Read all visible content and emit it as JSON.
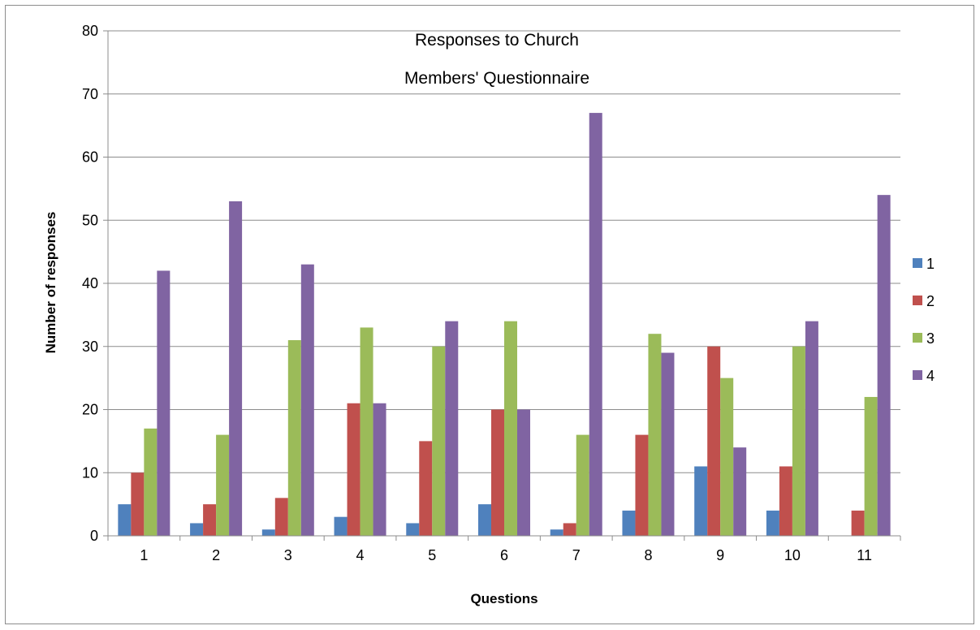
{
  "chart_data": {
    "type": "bar",
    "title_lines": [
      "Responses to Church",
      "Members' Questionnaire"
    ],
    "xlabel": "Questions",
    "ylabel": "Number of responses",
    "categories": [
      "1",
      "2",
      "3",
      "4",
      "5",
      "6",
      "7",
      "8",
      "9",
      "10",
      "11"
    ],
    "ylim": [
      0,
      80
    ],
    "yticks": [
      0,
      10,
      20,
      30,
      40,
      50,
      60,
      70,
      80
    ],
    "grid": true,
    "legend_position": "right",
    "series": [
      {
        "name": "1",
        "color": "#4f81bd",
        "values": [
          5,
          2,
          1,
          3,
          2,
          5,
          1,
          4,
          11,
          4,
          0
        ]
      },
      {
        "name": "2",
        "color": "#c0504d",
        "values": [
          10,
          5,
          6,
          21,
          15,
          20,
          2,
          16,
          30,
          11,
          4
        ]
      },
      {
        "name": "3",
        "color": "#9bbb59",
        "values": [
          17,
          16,
          31,
          33,
          30,
          34,
          16,
          32,
          25,
          30,
          22
        ]
      },
      {
        "name": "4",
        "color": "#8064a2",
        "values": [
          42,
          53,
          43,
          21,
          34,
          20,
          67,
          29,
          14,
          34,
          54
        ]
      }
    ]
  }
}
